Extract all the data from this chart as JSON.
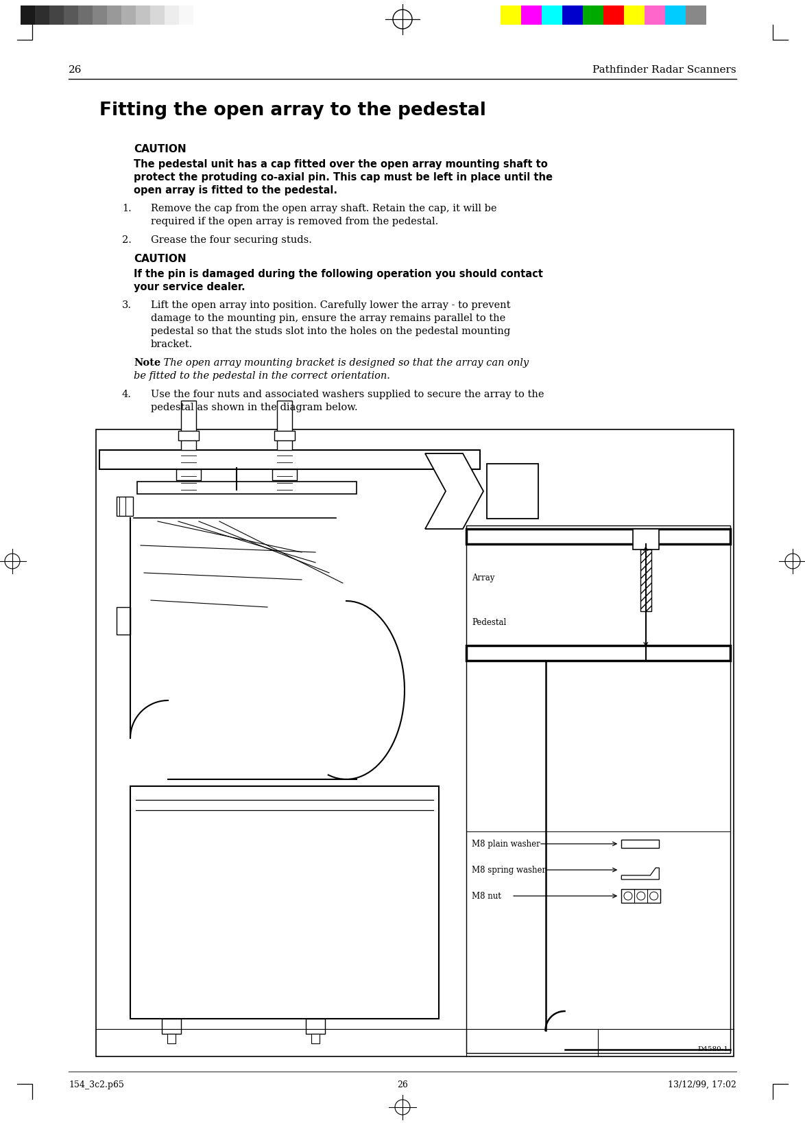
{
  "page_number": "26",
  "header_right": "Pathfinder Radar Scanners",
  "title": "Fitting the open array to the pedestal",
  "caution1_label": "CAUTION",
  "caution1_lines": [
    "The pedestal unit has a cap fitted over the open array mounting shaft to",
    "protect the protuding co-axial pin. This cap must be left in place until the",
    "open array is fitted to the pedestal."
  ],
  "step1_num": "1.",
  "step1_lines": [
    "Remove the cap from the open array shaft. Retain the cap, it will be",
    "required if the open array is removed from the pedestal."
  ],
  "step2_num": "2.",
  "step2_text": "Grease the four securing studs.",
  "caution2_label": "CAUTION",
  "caution2_lines": [
    "If the pin is damaged during the following operation you should contact",
    "your service dealer."
  ],
  "step3_num": "3.",
  "step3_lines": [
    "Lift the open array into position. Carefully lower the array - to prevent",
    "damage to the mounting pin, ensure the array remains parallel to the",
    "pedestal so that the studs slot into the holes on the pedestal mounting",
    "bracket."
  ],
  "note_bold": "Note",
  "note_italic_lines": [
    ": The open array mounting bracket is designed so that the array can only",
    "be fitted to the pedestal in the correct orientation."
  ],
  "step4_num": "4.",
  "step4_lines": [
    "Use the four nuts and associated washers supplied to secure the array to the",
    "pedestal as shown in the diagram below."
  ],
  "diagram_label": "D4580-1",
  "footer_left": "154_3c2.p65",
  "footer_center": "26",
  "footer_right": "13/12/99, 17:02",
  "bg_color": "#ffffff",
  "gray_bars": [
    "#1a1a1a",
    "#2e2e2e",
    "#444444",
    "#595959",
    "#6e6e6e",
    "#848484",
    "#999999",
    "#aeaeae",
    "#c3c3c3",
    "#d8d8d8",
    "#ededed",
    "#f8f8f8",
    "#ffffff"
  ],
  "color_bars": [
    "#ffff00",
    "#ff00ff",
    "#00ffff",
    "#0000cc",
    "#00aa00",
    "#ff0000",
    "#ffff00",
    "#ff66cc",
    "#00ccff",
    "#888888"
  ]
}
